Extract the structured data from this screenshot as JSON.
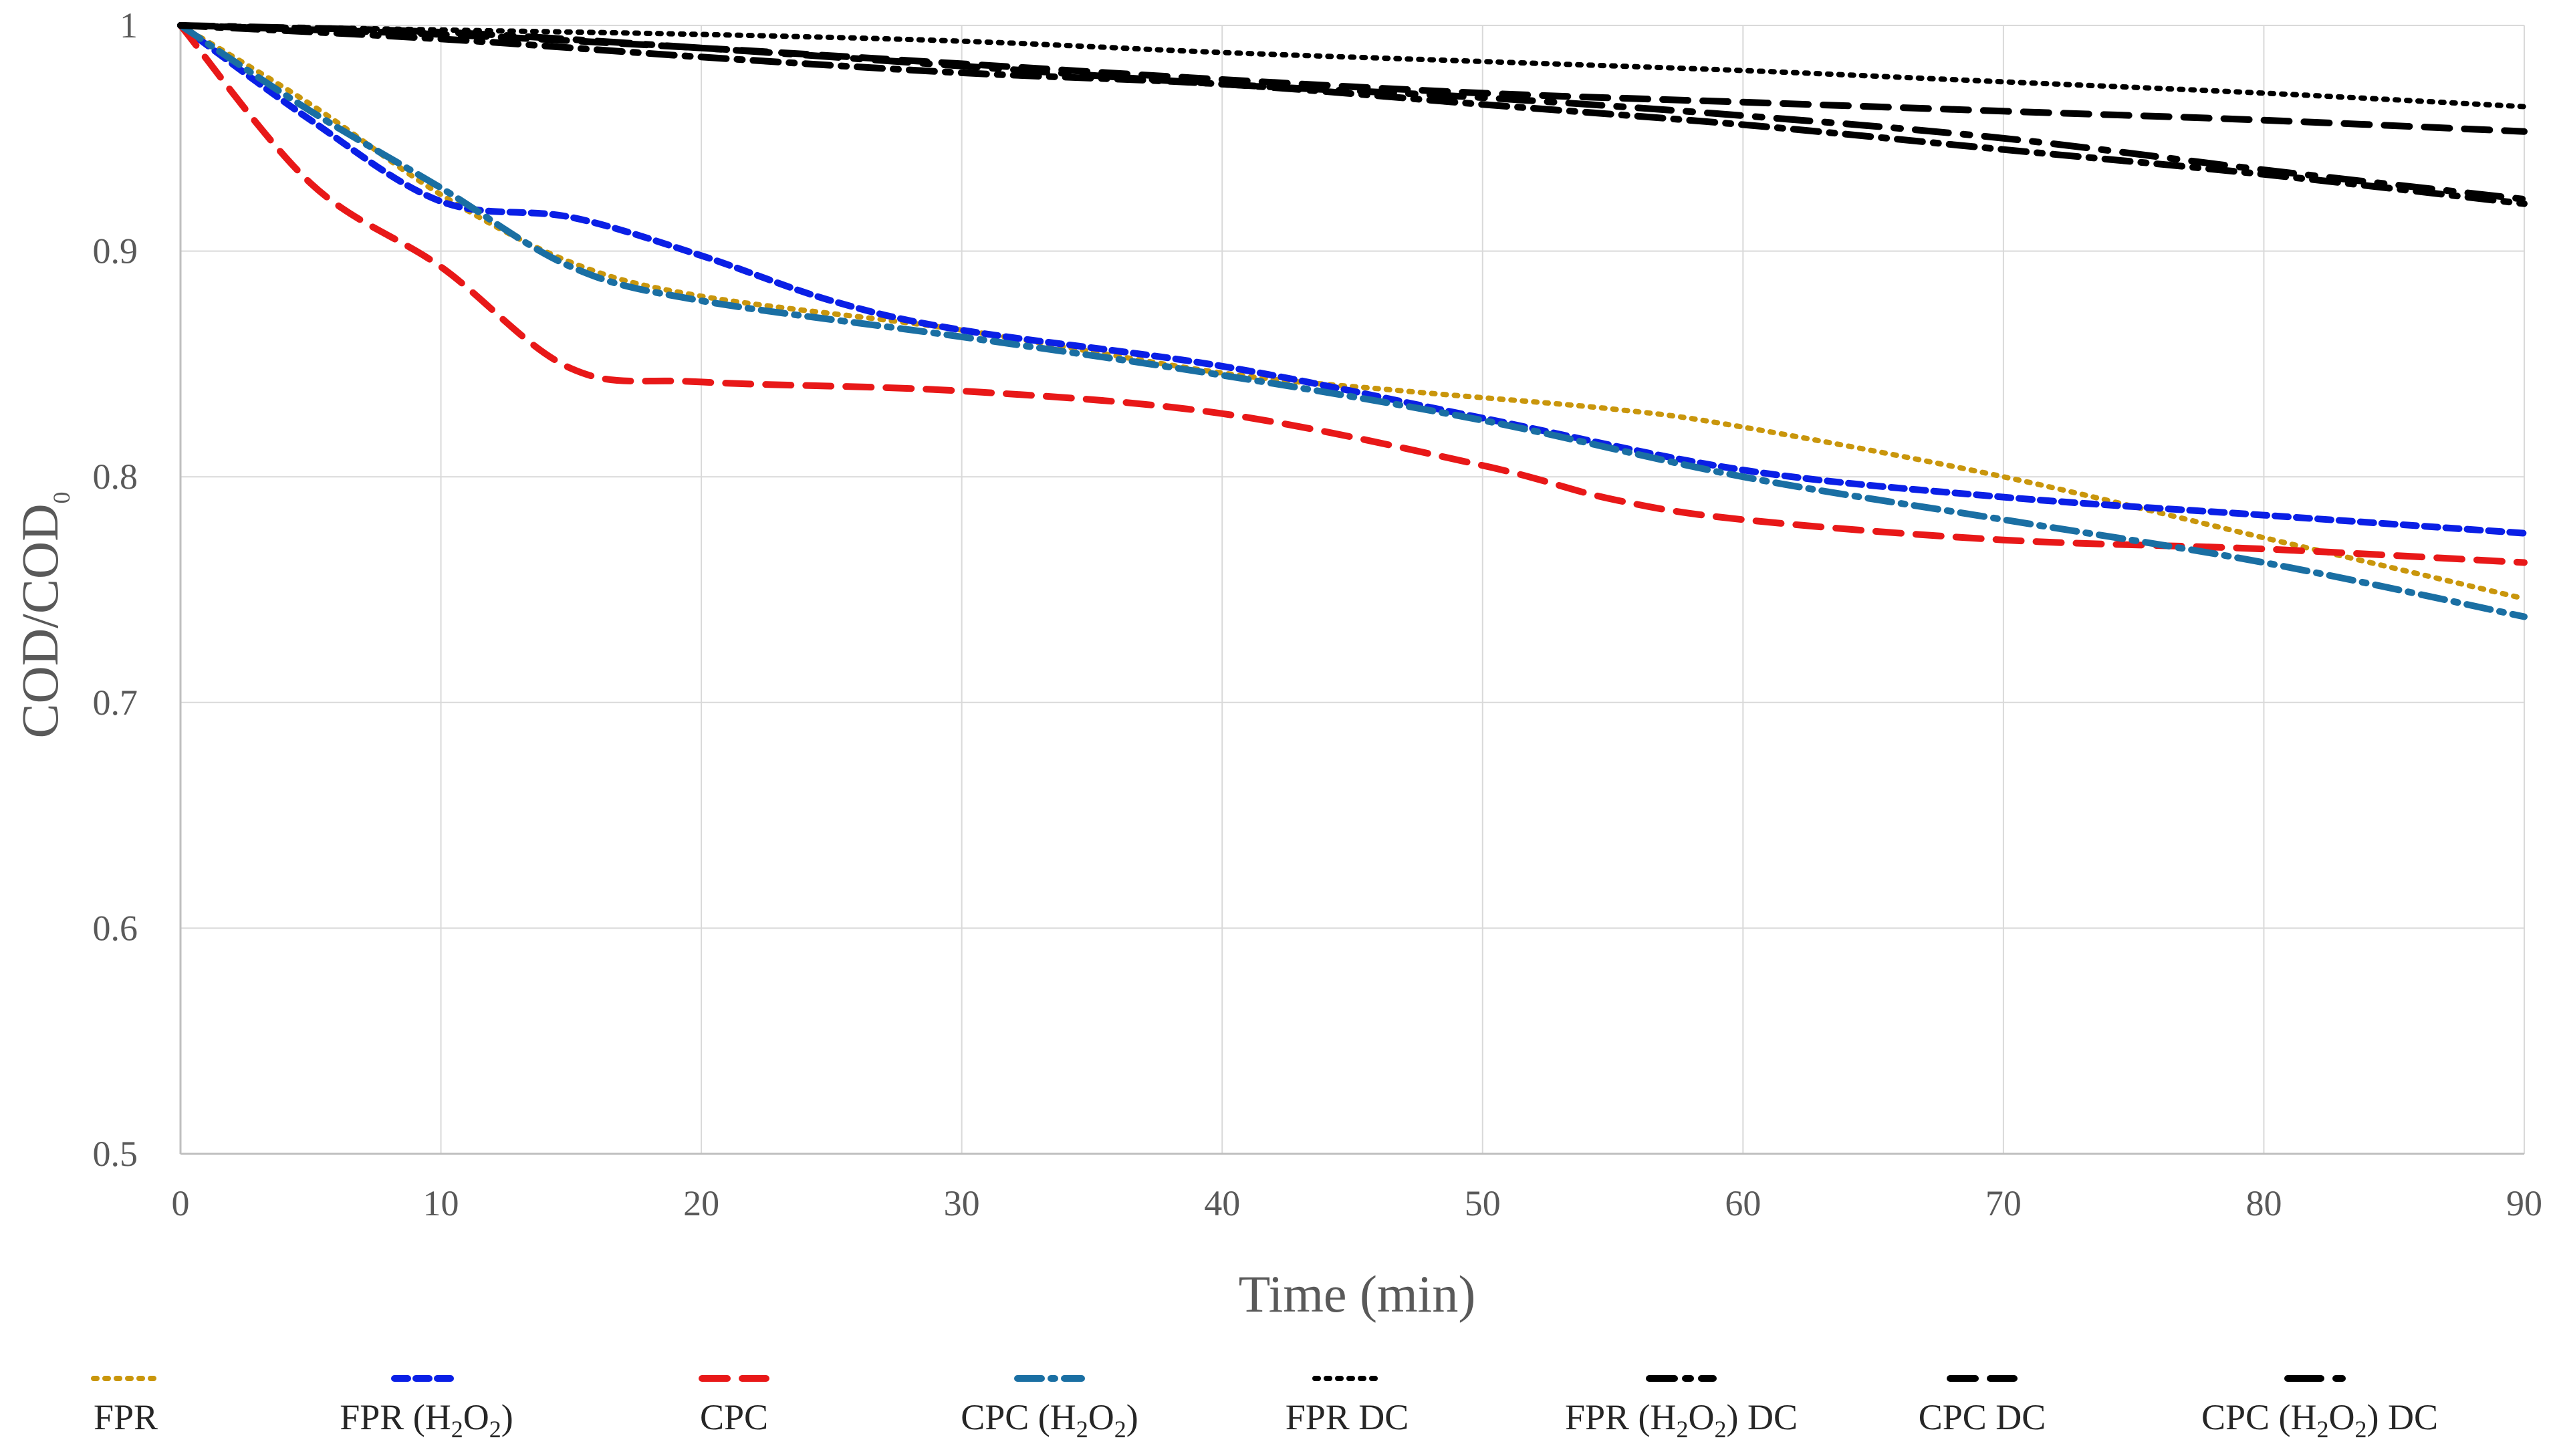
{
  "chart_data": {
    "type": "line",
    "title": "",
    "xlabel": "Time (min)",
    "ylabel_main": "COD/COD",
    "ylabel_sub": "0",
    "xlim": [
      0,
      90
    ],
    "ylim": [
      0.5,
      1
    ],
    "x_ticks": [
      0,
      10,
      20,
      30,
      40,
      50,
      60,
      70,
      80,
      90
    ],
    "x_tick_labels": [
      "0",
      "10",
      "20",
      "30",
      "40",
      "50",
      "60",
      "70",
      "80",
      "90"
    ],
    "y_ticks": [
      0.5,
      0.6,
      0.7,
      0.8,
      0.9,
      1
    ],
    "y_tick_labels": [
      "0.5",
      "0.6",
      "0.7",
      "0.8",
      "0.9",
      "1"
    ],
    "grid": true,
    "legend_position": "bottom",
    "series": [
      {
        "name": "FPR",
        "label_parts": [
          [
            "FPR",
            ""
          ]
        ],
        "color": "#C9960C",
        "style": "dot",
        "x": [
          0,
          5,
          10,
          15,
          20,
          30,
          40,
          47,
          55,
          60,
          70,
          80,
          90
        ],
        "values": [
          1.0,
          0.965,
          0.925,
          0.895,
          0.88,
          0.865,
          0.846,
          0.838,
          0.83,
          0.822,
          0.8,
          0.773,
          0.746
        ]
      },
      {
        "name": "FPR (H2O2)",
        "label_parts": [
          [
            "FPR (H",
            ""
          ],
          [
            "2",
            "sub"
          ],
          [
            "O",
            ""
          ],
          [
            "2",
            "sub"
          ],
          [
            ")",
            ""
          ]
        ],
        "color": "#0A1FE6",
        "style": "dash",
        "x": [
          0,
          5,
          10,
          15,
          20,
          25,
          30,
          40,
          50,
          60,
          70,
          80,
          90
        ],
        "values": [
          1.0,
          0.958,
          0.922,
          0.915,
          0.898,
          0.878,
          0.865,
          0.849,
          0.826,
          0.803,
          0.791,
          0.783,
          0.775
        ]
      },
      {
        "name": "CPC",
        "label_parts": [
          [
            "CPC",
            ""
          ]
        ],
        "color": "#E81818",
        "style": "longdash",
        "x": [
          0,
          5,
          10,
          15,
          20,
          30,
          40,
          50,
          55,
          60,
          70,
          80,
          90
        ],
        "values": [
          1.0,
          0.93,
          0.893,
          0.848,
          0.842,
          0.838,
          0.828,
          0.805,
          0.79,
          0.781,
          0.772,
          0.768,
          0.762
        ]
      },
      {
        "name": "CPC (H2O2)",
        "label_parts": [
          [
            "CPC (H",
            ""
          ],
          [
            "2",
            "sub"
          ],
          [
            "O",
            ""
          ],
          [
            "2",
            "sub"
          ],
          [
            ")",
            ""
          ]
        ],
        "color": "#1A6FA3",
        "style": "dashdot",
        "x": [
          0,
          5,
          10,
          15,
          20,
          30,
          40,
          50,
          60,
          70,
          80,
          90
        ],
        "values": [
          1.0,
          0.962,
          0.928,
          0.893,
          0.878,
          0.862,
          0.845,
          0.825,
          0.8,
          0.781,
          0.762,
          0.738
        ]
      },
      {
        "name": "FPR DC",
        "label_parts": [
          [
            "FPR DC",
            ""
          ]
        ],
        "color": "#000000",
        "style": "dot",
        "x": [
          0,
          10,
          20,
          30,
          40,
          50,
          60,
          70,
          80,
          90
        ],
        "values": [
          1.0,
          0.998,
          0.996,
          0.993,
          0.988,
          0.984,
          0.98,
          0.975,
          0.97,
          0.964
        ]
      },
      {
        "name": "FPR (H2O2) DC",
        "label_parts": [
          [
            "FPR (H",
            ""
          ],
          [
            "2",
            "sub"
          ],
          [
            "O",
            ""
          ],
          [
            "2",
            "sub"
          ],
          [
            ") DC",
            ""
          ]
        ],
        "color": "#000000",
        "style": "longdashdot",
        "x": [
          0,
          10,
          20,
          30,
          40,
          50,
          60,
          70,
          80,
          90
        ],
        "values": [
          1.0,
          0.994,
          0.986,
          0.979,
          0.974,
          0.965,
          0.956,
          0.945,
          0.934,
          0.921
        ]
      },
      {
        "name": "CPC DC",
        "label_parts": [
          [
            "CPC DC",
            ""
          ]
        ],
        "color": "#000000",
        "style": "longdash",
        "x": [
          0,
          10,
          20,
          30,
          40,
          50,
          60,
          70,
          80,
          90
        ],
        "values": [
          1.0,
          0.996,
          0.99,
          0.983,
          0.976,
          0.97,
          0.966,
          0.962,
          0.958,
          0.953
        ]
      },
      {
        "name": "CPC (H2O2) DC",
        "label_parts": [
          [
            "CPC (H",
            ""
          ],
          [
            "2",
            "sub"
          ],
          [
            "O",
            ""
          ],
          [
            "2",
            "sub"
          ],
          [
            ") DC",
            ""
          ]
        ],
        "color": "#000000",
        "style": "longdashdot2",
        "x": [
          0,
          10,
          20,
          30,
          40,
          50,
          60,
          70,
          80,
          90
        ],
        "values": [
          1.0,
          0.997,
          0.99,
          0.982,
          0.974,
          0.968,
          0.96,
          0.95,
          0.936,
          0.923
        ]
      }
    ]
  }
}
